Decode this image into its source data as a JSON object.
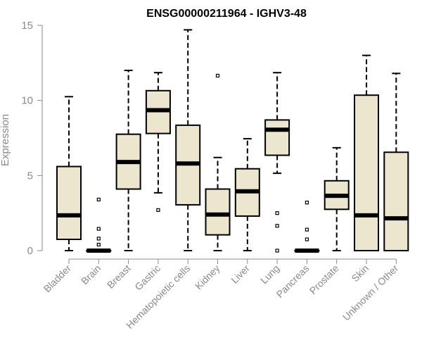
{
  "chart_data": {
    "type": "box",
    "title": "ENSG00000211964 - IGHV3-48",
    "xlabel": "",
    "ylabel": "Expression",
    "ylim": [
      0,
      15
    ],
    "yticks": [
      "0",
      "5",
      "10",
      "15"
    ],
    "box_fill": "#ede6cf",
    "box_stroke": "#000000",
    "axis_color": "#8a8a8a",
    "categories": [
      "Bladder",
      "Brain",
      "Breast",
      "Gastric",
      "Hematopoietic cells",
      "Kidney",
      "Liver",
      "Lung",
      "Pancreas",
      "Prostate",
      "Skin",
      "Unknown / Other"
    ],
    "boxes": [
      {
        "whisker_low": 0,
        "q1": 0.75,
        "median": 2.35,
        "q3": 5.6,
        "whisker_high": 10.25,
        "outliers": []
      },
      {
        "whisker_low": 0,
        "q1": 0,
        "median": 0,
        "q3": 0,
        "whisker_high": 0,
        "outliers": [
          0.4,
          0.8,
          1.45,
          3.4
        ]
      },
      {
        "whisker_low": 0,
        "q1": 4.1,
        "median": 5.9,
        "q3": 7.75,
        "whisker_high": 12.0,
        "outliers": []
      },
      {
        "whisker_low": 3.85,
        "q1": 7.8,
        "median": 9.35,
        "q3": 10.65,
        "whisker_high": 11.85,
        "outliers": [
          2.7
        ]
      },
      {
        "whisker_low": 0,
        "q1": 3.05,
        "median": 5.8,
        "q3": 8.35,
        "whisker_high": 14.7,
        "outliers": []
      },
      {
        "whisker_low": 0,
        "q1": 1.05,
        "median": 2.4,
        "q3": 4.1,
        "whisker_high": 6.2,
        "outliers": [
          11.65
        ]
      },
      {
        "whisker_low": 0,
        "q1": 2.3,
        "median": 3.95,
        "q3": 5.45,
        "whisker_high": 7.45,
        "outliers": []
      },
      {
        "whisker_low": 5.15,
        "q1": 6.35,
        "median": 8.05,
        "q3": 8.7,
        "whisker_high": 11.85,
        "outliers": [
          0,
          1.65,
          2.5
        ]
      },
      {
        "whisker_low": 0,
        "q1": 0,
        "median": 0,
        "q3": 0,
        "whisker_high": 0,
        "outliers": [
          0.75,
          1.4,
          3.2
        ]
      },
      {
        "whisker_low": 0,
        "q1": 2.75,
        "median": 3.65,
        "q3": 4.65,
        "whisker_high": 6.85,
        "outliers": []
      },
      {
        "whisker_low": 0,
        "q1": 0,
        "median": 2.35,
        "q3": 10.35,
        "whisker_high": 13.0,
        "outliers": []
      },
      {
        "whisker_low": 0,
        "q1": 0,
        "median": 2.15,
        "q3": 6.55,
        "whisker_high": 11.8,
        "outliers": []
      }
    ]
  }
}
